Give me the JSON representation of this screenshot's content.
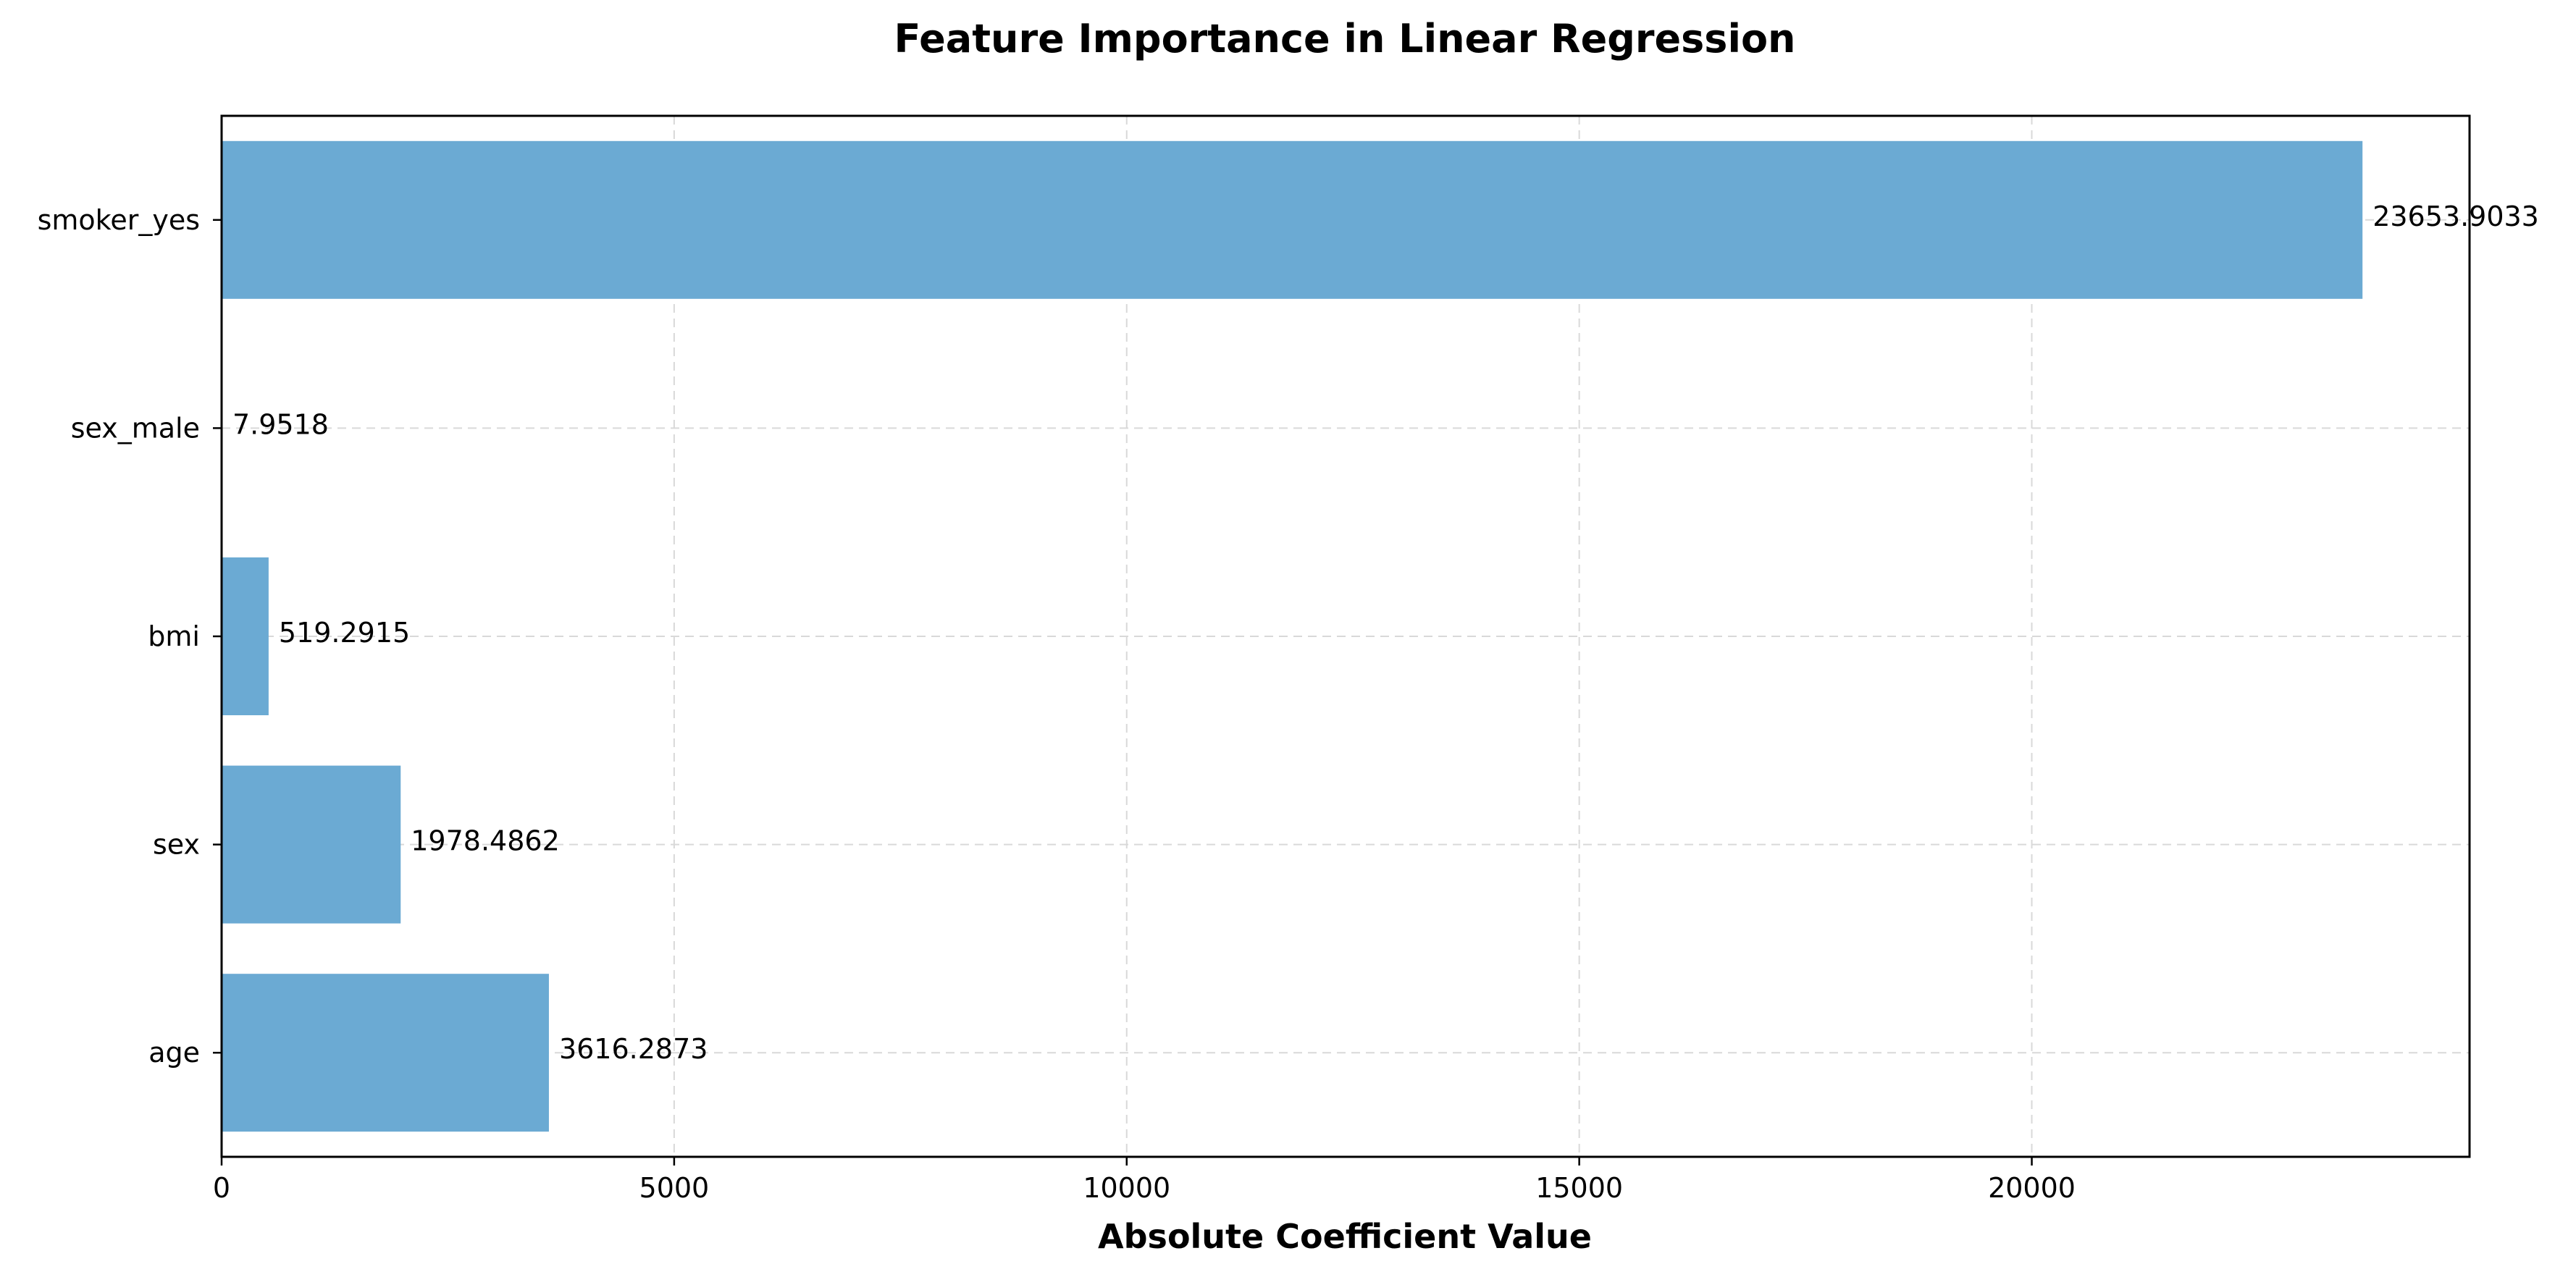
{
  "chart_data": {
    "type": "bar",
    "orientation": "horizontal",
    "title": "Feature Importance in Linear Regression",
    "xlabel": "Absolute Coefficient Value",
    "ylabel": "",
    "categories": [
      "age",
      "sex",
      "bmi",
      "sex_male",
      "smoker_yes"
    ],
    "values": [
      3616.2873,
      1978.4862,
      519.2915,
      7.9518,
      23653.9033
    ],
    "value_labels": [
      "3616.2873",
      "1978.4862",
      "519.2915",
      "7.9518",
      "23653.9033"
    ],
    "xlim": [
      0,
      24836.6
    ],
    "xticks": [
      0,
      5000,
      10000,
      15000,
      20000
    ],
    "xtick_labels": [
      "0",
      "5000",
      "10000",
      "15000",
      "20000"
    ],
    "grid": true,
    "legend": "none",
    "bar_color": "#6baad3"
  }
}
